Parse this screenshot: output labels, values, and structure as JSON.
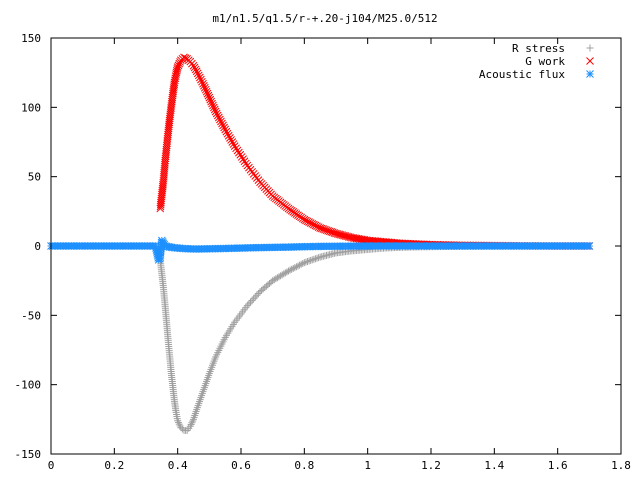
{
  "chart_data": {
    "type": "scatter",
    "title": "m1/n1.5/q1.5/r-+.20-j104/M25.0/512",
    "xlabel": "",
    "ylabel": "",
    "xlim": [
      0,
      1.8
    ],
    "ylim": [
      -150,
      150
    ],
    "x_ticks": [
      "0",
      "0.2",
      "0.4",
      "0.6",
      "0.8",
      "1",
      "1.2",
      "1.4",
      "1.6",
      "1.8"
    ],
    "y_ticks": [
      "150",
      "100",
      "50",
      "0",
      "-50",
      "-100",
      "-150"
    ],
    "grid": false,
    "legend_position": "top-right",
    "series": [
      {
        "name": "R stress",
        "marker": "plus",
        "color": "#a0a0a0",
        "x": [
          0.345,
          0.35,
          0.355,
          0.36,
          0.365,
          0.37,
          0.375,
          0.38,
          0.385,
          0.39,
          0.395,
          0.4,
          0.41,
          0.42,
          0.43,
          0.44,
          0.45,
          0.46,
          0.48,
          0.5,
          0.52,
          0.55,
          0.58,
          0.62,
          0.66,
          0.7,
          0.75,
          0.8,
          0.85,
          0.9,
          0.95,
          1.0,
          1.05,
          1.1,
          1.15,
          1.2,
          1.3,
          1.4,
          1.5,
          1.6,
          1.7
        ],
        "y": [
          -10,
          -20,
          -30,
          -42,
          -55,
          -68,
          -80,
          -92,
          -102,
          -112,
          -120,
          -126,
          -131,
          -133,
          -133,
          -130,
          -125,
          -118,
          -105,
          -92,
          -80,
          -66,
          -55,
          -43,
          -33,
          -25,
          -18,
          -12,
          -8,
          -5,
          -3.5,
          -2.5,
          -1.5,
          -1,
          -0.7,
          -0.5,
          -0.2,
          -0.1,
          0,
          0,
          0
        ]
      },
      {
        "name": "G work",
        "marker": "cross",
        "color": "#ff0000",
        "x": [
          0.345,
          0.35,
          0.355,
          0.36,
          0.365,
          0.37,
          0.375,
          0.38,
          0.385,
          0.39,
          0.395,
          0.4,
          0.41,
          0.42,
          0.43,
          0.44,
          0.45,
          0.46,
          0.48,
          0.5,
          0.52,
          0.55,
          0.58,
          0.62,
          0.66,
          0.7,
          0.75,
          0.8,
          0.85,
          0.9,
          0.95,
          1.0,
          1.05,
          1.1,
          1.15,
          1.2,
          1.3,
          1.4,
          1.5,
          1.6,
          1.7
        ],
        "y": [
          27,
          37,
          47,
          60,
          71,
          82,
          92,
          101,
          110,
          118,
          124,
          129,
          134,
          136,
          135,
          133,
          130,
          126,
          117,
          107,
          97,
          84,
          72,
          58,
          46,
          36,
          27,
          19,
          13,
          9,
          6,
          4,
          3,
          2,
          1.5,
          1,
          0.5,
          0.3,
          0.1,
          0,
          0
        ]
      },
      {
        "name": "Acoustic flux",
        "marker": "star",
        "color": "#1e90ff",
        "x": [
          0.0,
          0.05,
          0.1,
          0.15,
          0.2,
          0.25,
          0.3,
          0.33,
          0.34,
          0.345,
          0.35,
          0.355,
          0.36,
          0.37,
          0.38,
          0.4,
          0.43,
          0.46,
          0.5,
          0.55,
          0.6,
          0.65,
          0.7,
          0.75,
          0.8,
          0.85,
          0.9,
          0.95,
          1.0,
          1.05,
          1.1,
          1.2,
          1.3,
          1.4,
          1.5,
          1.6,
          1.7
        ],
        "y": [
          0,
          0,
          0,
          0,
          0,
          0,
          0,
          0,
          -10,
          -8,
          4,
          2,
          0,
          -0.5,
          -1,
          -1.5,
          -2,
          -2.2,
          -2,
          -1.8,
          -1.5,
          -1.2,
          -1,
          -0.8,
          -0.5,
          -0.3,
          -0.2,
          -0.1,
          0,
          0,
          0,
          0,
          0,
          0,
          0,
          0,
          0
        ]
      }
    ]
  }
}
